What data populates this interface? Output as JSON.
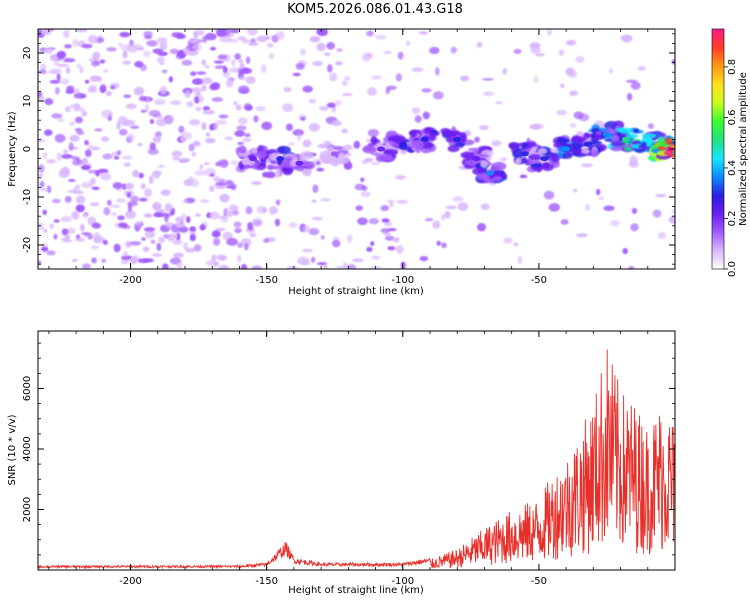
{
  "title": "KOM5.2026.086.01.43.G18",
  "colors": {
    "snr_line": "#e8302b",
    "axis": "#000000",
    "colormap": [
      "#ffffff",
      "#d9b8ff",
      "#a15bff",
      "#6a1cf0",
      "#2a20e0",
      "#0d8cff",
      "#16e6ff",
      "#22e080",
      "#3bff2e",
      "#c9ff1e",
      "#ffe11a",
      "#ff9a16",
      "#ff3b24",
      "#ff1a8c"
    ]
  },
  "chart_data": [
    {
      "type": "heatmap",
      "xlabel": "Height of straight line (km)",
      "ylabel": "Frequency (Hz)",
      "xlim": [
        -234,
        0
      ],
      "ylim": [
        -25,
        25
      ],
      "xticks": [
        -200,
        -150,
        -100,
        -50
      ],
      "xtick_labels": [
        "-200",
        "-150",
        "-100",
        "-50"
      ],
      "yticks": [
        -20,
        -10,
        0,
        10,
        20
      ],
      "ytick_labels": [
        "-20",
        "-10",
        "0",
        "10",
        "20"
      ],
      "colorbar": {
        "label": "Normalized spectral amplitude",
        "range": [
          0,
          0.95
        ],
        "ticks": [
          0.0,
          0.2,
          0.4,
          0.6,
          0.8
        ],
        "tick_labels": [
          "0.0",
          "0.2",
          "0.4",
          "0.6",
          "0.8"
        ]
      },
      "ridge": [
        {
          "x": -155,
          "f": -2,
          "amp": 0.25
        },
        {
          "x": -145,
          "f": -2,
          "amp": 0.3
        },
        {
          "x": -138,
          "f": -3,
          "amp": 0.2
        },
        {
          "x": -125,
          "f": -1,
          "amp": 0.15
        },
        {
          "x": -108,
          "f": 0,
          "amp": 0.22
        },
        {
          "x": -100,
          "f": 1,
          "amp": 0.3
        },
        {
          "x": -92,
          "f": 2,
          "amp": 0.28
        },
        {
          "x": -80,
          "f": 2,
          "amp": 0.3
        },
        {
          "x": -73,
          "f": -2,
          "amp": 0.25
        },
        {
          "x": -68,
          "f": -5,
          "amp": 0.35
        },
        {
          "x": -55,
          "f": -1,
          "amp": 0.3
        },
        {
          "x": -48,
          "f": -2,
          "amp": 0.3
        },
        {
          "x": -40,
          "f": 0,
          "amp": 0.35
        },
        {
          "x": -32,
          "f": 1,
          "amp": 0.3
        },
        {
          "x": -25,
          "f": 3,
          "amp": 0.4
        },
        {
          "x": -18,
          "f": 2,
          "amp": 0.5
        },
        {
          "x": -10,
          "f": 2,
          "amp": 0.45
        },
        {
          "x": -5,
          "f": 0,
          "amp": 0.85
        },
        {
          "x": -2,
          "f": 0,
          "amp": 0.95
        }
      ]
    },
    {
      "type": "line",
      "xlabel": "Height of straight line (km)",
      "ylabel": "SNR (10 * v/v)",
      "xlim": [
        -234,
        0
      ],
      "ylim": [
        0,
        7900
      ],
      "xticks": [
        -200,
        -150,
        -100,
        -50
      ],
      "xtick_labels": [
        "-200",
        "-150",
        "-100",
        "-50"
      ],
      "yticks": [
        2000,
        4000,
        6000
      ],
      "ytick_labels": [
        "2000",
        "4000",
        "6000"
      ],
      "envelope": {
        "x": [
          -234,
          -160,
          -150,
          -143,
          -140,
          -130,
          -100,
          -90,
          -80,
          -70,
          -60,
          -50,
          -45,
          -40,
          -35,
          -30,
          -25,
          -20,
          -15,
          -10,
          -5,
          0
        ],
        "y": [
          120,
          130,
          200,
          800,
          350,
          200,
          200,
          350,
          700,
          1400,
          2000,
          2400,
          3200,
          3800,
          4600,
          5600,
          7600,
          6000,
          5600,
          4800,
          5600,
          5000
        ]
      }
    }
  ]
}
